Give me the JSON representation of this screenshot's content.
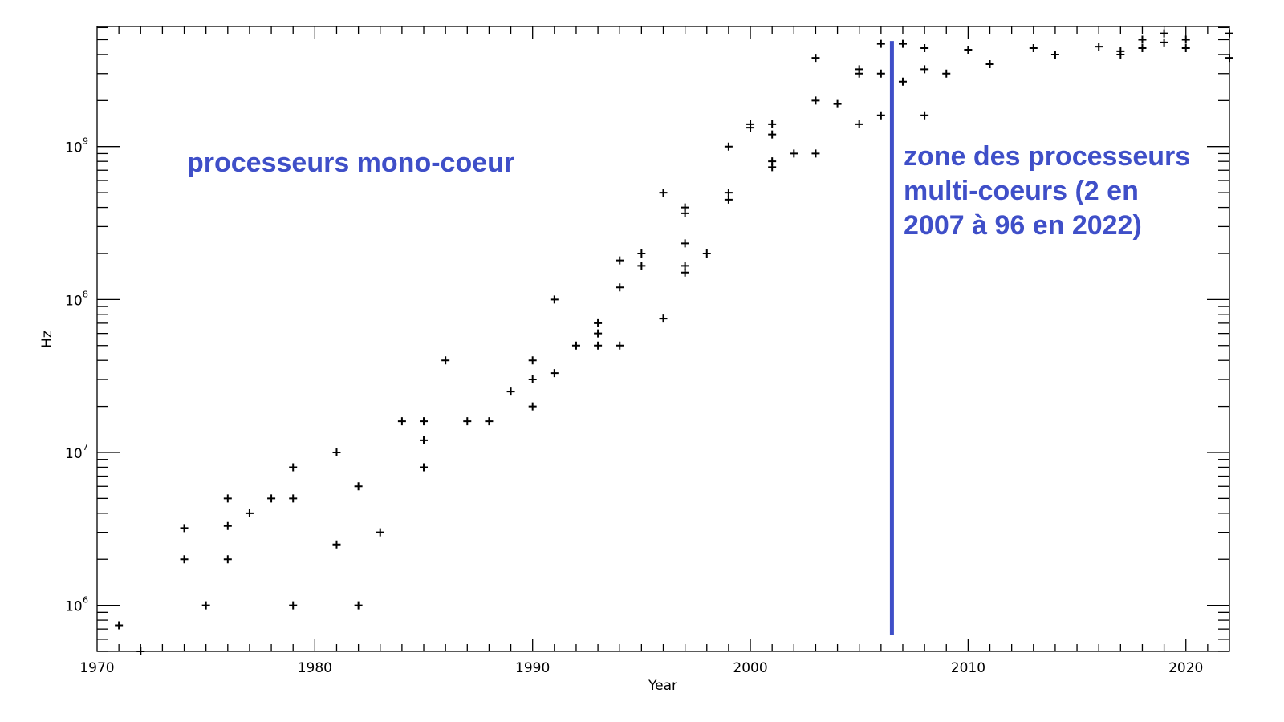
{
  "chart_data": {
    "type": "scatter",
    "title": "",
    "xlabel": "Year",
    "ylabel": "Hz",
    "xlim": [
      1970,
      2022
    ],
    "ylim": [
      500000,
      6100000000
    ],
    "yscale": "log",
    "grid": false,
    "marker": "+",
    "x_tick_labels": [
      "1970",
      "1980",
      "1990",
      "2000",
      "2010",
      "2020"
    ],
    "x_ticks": [
      1970,
      1980,
      1990,
      2000,
      2010,
      2020
    ],
    "y_ticks": [
      1000000,
      10000000,
      100000000,
      1000000000
    ],
    "y_tick_labels": [
      {
        "base": "10",
        "exp": "6"
      },
      {
        "base": "10",
        "exp": "7"
      },
      {
        "base": "10",
        "exp": "8"
      },
      {
        "base": "10",
        "exp": "9"
      }
    ],
    "points": [
      [
        1971,
        740000
      ],
      [
        1972,
        500000
      ],
      [
        1974,
        3200000
      ],
      [
        1974,
        2000000
      ],
      [
        1975,
        1000000
      ],
      [
        1976,
        5000000
      ],
      [
        1976,
        3300000
      ],
      [
        1976,
        2000000
      ],
      [
        1977,
        4000000
      ],
      [
        1978,
        5000000
      ],
      [
        1979,
        8000000
      ],
      [
        1979,
        5000000
      ],
      [
        1979,
        1000000
      ],
      [
        1981,
        10000000
      ],
      [
        1981,
        2500000
      ],
      [
        1982,
        6000000
      ],
      [
        1982,
        1000000
      ],
      [
        1983,
        3000000
      ],
      [
        1984,
        16000000
      ],
      [
        1985,
        16000000
      ],
      [
        1985,
        12000000
      ],
      [
        1985,
        8000000
      ],
      [
        1986,
        40000000
      ],
      [
        1987,
        16000000
      ],
      [
        1988,
        16000000
      ],
      [
        1989,
        25000000
      ],
      [
        1990,
        40000000
      ],
      [
        1990,
        30000000
      ],
      [
        1990,
        20000000
      ],
      [
        1991,
        100000000
      ],
      [
        1991,
        33000000
      ],
      [
        1992,
        50000000
      ],
      [
        1993,
        70000000
      ],
      [
        1993,
        60000000
      ],
      [
        1993,
        50000000
      ],
      [
        1994,
        180000000
      ],
      [
        1994,
        120000000
      ],
      [
        1994,
        50000000
      ],
      [
        1995,
        200000000
      ],
      [
        1995,
        166000000
      ],
      [
        1996,
        500000000
      ],
      [
        1996,
        75000000
      ],
      [
        1997,
        400000000
      ],
      [
        1997,
        366000000
      ],
      [
        1997,
        233000000
      ],
      [
        1997,
        166000000
      ],
      [
        1997,
        150000000
      ],
      [
        1998,
        200000000
      ],
      [
        1999,
        1000000000
      ],
      [
        1999,
        500000000
      ],
      [
        1999,
        450000000
      ],
      [
        2000,
        1400000000
      ],
      [
        2000,
        1330000000
      ],
      [
        2001,
        1400000000
      ],
      [
        2001,
        1200000000
      ],
      [
        2001,
        800000000
      ],
      [
        2001,
        733000000
      ],
      [
        2002,
        900000000
      ],
      [
        2003,
        3800000000
      ],
      [
        2003,
        2000000000
      ],
      [
        2003,
        900000000
      ],
      [
        2004,
        1900000000
      ],
      [
        2005,
        3200000000
      ],
      [
        2005,
        3000000000
      ],
      [
        2005,
        1400000000
      ],
      [
        2006,
        4700000000
      ],
      [
        2006,
        3000000000
      ],
      [
        2006,
        1600000000
      ],
      [
        2007,
        4700000000
      ],
      [
        2007,
        2660000000
      ],
      [
        2008,
        4400000000
      ],
      [
        2008,
        3200000000
      ],
      [
        2008,
        1600000000
      ],
      [
        2009,
        3000000000
      ],
      [
        2010,
        4300000000
      ],
      [
        2011,
        3460000000
      ],
      [
        2013,
        4400000000
      ],
      [
        2014,
        4000000000
      ],
      [
        2016,
        4500000000
      ],
      [
        2017,
        4200000000
      ],
      [
        2017,
        4000000000
      ],
      [
        2018,
        5000000000
      ],
      [
        2018,
        4400000000
      ],
      [
        2019,
        5500000000
      ],
      [
        2019,
        4800000000
      ],
      [
        2020,
        5000000000
      ],
      [
        2020,
        4400000000
      ],
      [
        2022,
        5500000000
      ],
      [
        2022,
        3800000000
      ]
    ],
    "divider": {
      "x": 2006.5,
      "y_from": 640000,
      "y_to": 4900000000,
      "color": "#3f4fc8"
    },
    "annotations": {
      "single_core": "processeurs mono-coeur",
      "multi_core_lines": [
        "zone des processeurs",
        "multi-coeurs (2 en",
        "2007 à 96 en 2022)"
      ],
      "color": "#3f4fc8"
    }
  }
}
